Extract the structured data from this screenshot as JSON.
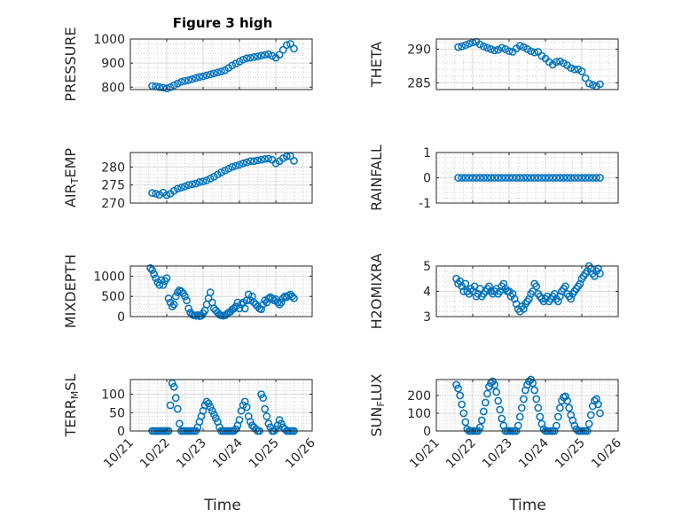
{
  "figure": {
    "title": "Figure 3 high",
    "xlabel": "Time",
    "x_tick_labels": [
      "10/21",
      "10/22",
      "10/23",
      "10/24",
      "10/25",
      "10/26"
    ],
    "marker_color": "#0072BD",
    "grid_color": "#c8c8c8"
  },
  "chart_data": [
    {
      "type": "scatter",
      "name": "pressure",
      "title": "Figure 3 high",
      "xlabel": "",
      "x_unit": "day (Oct)",
      "ylabel": "PRESSURE",
      "ylabel_parts": [
        {
          "t": "PRESSURE",
          "sub": false
        }
      ],
      "xlim": [
        21,
        26
      ],
      "ylim": [
        790,
        1000
      ],
      "yticks": [
        800,
        900,
        1000
      ],
      "ytick_labels": [
        "800",
        "900",
        "1000"
      ],
      "grid": true,
      "minor_grid": true,
      "x": [
        21.6,
        21.7,
        21.8,
        21.9,
        22.0,
        22.1,
        22.2,
        22.3,
        22.4,
        22.5,
        22.6,
        22.7,
        22.8,
        22.9,
        23.0,
        23.1,
        23.2,
        23.3,
        23.4,
        23.5,
        23.6,
        23.7,
        23.8,
        23.9,
        24.0,
        24.1,
        24.2,
        24.3,
        24.4,
        24.5,
        24.6,
        24.7,
        24.8,
        24.9,
        25.0,
        25.1,
        25.2,
        25.3,
        25.4,
        25.5
      ],
      "y": [
        805,
        803,
        800,
        798,
        795,
        800,
        808,
        815,
        822,
        826,
        829,
        833,
        838,
        842,
        845,
        849,
        853,
        857,
        861,
        865,
        870,
        880,
        890,
        898,
        906,
        914,
        920,
        922,
        925,
        928,
        931,
        934,
        937,
        930,
        922,
        935,
        955,
        975,
        980,
        960
      ]
    },
    {
      "type": "scatter",
      "name": "theta",
      "xlabel": "",
      "ylabel": "THETA",
      "ylabel_parts": [
        {
          "t": "THETA",
          "sub": false
        }
      ],
      "xlim": [
        21,
        26
      ],
      "ylim": [
        284,
        291.5
      ],
      "yticks": [
        285,
        290
      ],
      "ytick_labels": [
        "285",
        "290"
      ],
      "grid": true,
      "minor_grid": true,
      "x": [
        21.6,
        21.7,
        21.8,
        21.9,
        22.0,
        22.1,
        22.2,
        22.3,
        22.4,
        22.5,
        22.6,
        22.7,
        22.8,
        22.9,
        23.0,
        23.1,
        23.2,
        23.3,
        23.4,
        23.5,
        23.6,
        23.7,
        23.8,
        23.9,
        24.0,
        24.1,
        24.2,
        24.3,
        24.4,
        24.5,
        24.6,
        24.7,
        24.8,
        24.9,
        25.0,
        25.1,
        25.2,
        25.3,
        25.4,
        25.5
      ],
      "y": [
        290.3,
        290.4,
        290.6,
        290.8,
        291.0,
        291.1,
        290.7,
        290.4,
        290.2,
        290.0,
        289.8,
        289.9,
        290.2,
        290.0,
        289.7,
        289.6,
        290.1,
        290.5,
        290.3,
        290.0,
        289.7,
        289.5,
        289.6,
        289.0,
        288.6,
        288.1,
        287.7,
        288.1,
        288.2,
        287.9,
        287.6,
        287.2,
        287.0,
        287.0,
        286.7,
        285.7,
        284.9,
        284.7,
        284.5,
        284.8
      ]
    },
    {
      "type": "scatter",
      "name": "air_temp",
      "xlabel": "",
      "ylabel": "AIR_TEMP",
      "ylabel_parts": [
        {
          "t": "AIR",
          "sub": false
        },
        {
          "t": "T",
          "sub": true
        },
        {
          "t": "EMP",
          "sub": false
        }
      ],
      "xlim": [
        21,
        26
      ],
      "ylim": [
        270,
        284
      ],
      "yticks": [
        270,
        275,
        280
      ],
      "ytick_labels": [
        "270",
        "275",
        "280"
      ],
      "grid": true,
      "minor_grid": true,
      "x": [
        21.6,
        21.7,
        21.8,
        21.9,
        22.0,
        22.1,
        22.2,
        22.3,
        22.4,
        22.5,
        22.6,
        22.7,
        22.8,
        22.9,
        23.0,
        23.1,
        23.2,
        23.3,
        23.4,
        23.5,
        23.6,
        23.7,
        23.8,
        23.9,
        24.0,
        24.1,
        24.2,
        24.3,
        24.4,
        24.5,
        24.6,
        24.7,
        24.8,
        24.9,
        25.0,
        25.1,
        25.2,
        25.3,
        25.4,
        25.5
      ],
      "y": [
        272.8,
        272.6,
        272.3,
        272.9,
        272.2,
        272.6,
        273.4,
        274.0,
        274.3,
        274.6,
        275.0,
        275.2,
        275.4,
        275.8,
        276.0,
        276.3,
        276.8,
        277.3,
        277.9,
        278.5,
        279.0,
        279.5,
        280.0,
        280.3,
        280.6,
        281.0,
        281.3,
        281.6,
        281.6,
        281.8,
        282.0,
        282.2,
        282.3,
        282.0,
        281.0,
        281.6,
        282.4,
        282.9,
        283.0,
        281.7
      ]
    },
    {
      "type": "scatter",
      "name": "rainfall",
      "xlabel": "",
      "ylabel": "RAINFALL",
      "ylabel_parts": [
        {
          "t": "RAINFALL",
          "sub": false
        }
      ],
      "xlim": [
        21,
        26
      ],
      "ylim": [
        -1,
        1
      ],
      "yticks": [
        -1,
        0,
        1
      ],
      "ytick_labels": [
        "-1",
        "0",
        "1"
      ],
      "grid": true,
      "minor_grid": true,
      "x": [
        21.6,
        21.7,
        21.8,
        21.9,
        22.0,
        22.1,
        22.2,
        22.3,
        22.4,
        22.5,
        22.6,
        22.7,
        22.8,
        22.9,
        23.0,
        23.1,
        23.2,
        23.3,
        23.4,
        23.5,
        23.6,
        23.7,
        23.8,
        23.9,
        24.0,
        24.1,
        24.2,
        24.3,
        24.4,
        24.5,
        24.6,
        24.7,
        24.8,
        24.9,
        25.0,
        25.1,
        25.2,
        25.3,
        25.4,
        25.5
      ],
      "y": [
        0,
        0,
        0,
        0,
        0,
        0,
        0,
        0,
        0,
        0,
        0,
        0,
        0,
        0,
        0,
        0,
        0,
        0,
        0,
        0,
        0,
        0,
        0,
        0,
        0,
        0,
        0,
        0,
        0,
        0,
        0,
        0,
        0,
        0,
        0,
        0,
        0,
        0,
        0,
        0
      ]
    },
    {
      "type": "scatter",
      "name": "mixdepth",
      "xlabel": "",
      "ylabel": "MIXDEPTH",
      "ylabel_parts": [
        {
          "t": "MIXDEPTH",
          "sub": false
        }
      ],
      "xlim": [
        21,
        26
      ],
      "ylim": [
        0,
        1250
      ],
      "yticks": [
        0,
        500,
        1000
      ],
      "ytick_labels": [
        "0",
        "500",
        "1000"
      ],
      "grid": true,
      "minor_grid": true,
      "x": [
        21.55,
        21.6,
        21.65,
        21.7,
        21.75,
        21.8,
        21.85,
        21.9,
        21.95,
        22.0,
        22.05,
        22.1,
        22.15,
        22.2,
        22.25,
        22.3,
        22.35,
        22.4,
        22.45,
        22.5,
        22.55,
        22.6,
        22.65,
        22.7,
        22.75,
        22.8,
        22.85,
        22.9,
        22.95,
        23.0,
        23.05,
        23.1,
        23.15,
        23.2,
        23.25,
        23.3,
        23.35,
        23.4,
        23.45,
        23.5,
        23.55,
        23.6,
        23.65,
        23.7,
        23.75,
        23.8,
        23.85,
        23.9,
        23.95,
        24.0,
        24.05,
        24.1,
        24.15,
        24.2,
        24.25,
        24.3,
        24.35,
        24.4,
        24.45,
        24.5,
        24.55,
        24.6,
        24.65,
        24.7,
        24.75,
        24.8,
        24.85,
        24.9,
        24.95,
        25.0,
        25.05,
        25.1,
        25.15,
        25.2,
        25.25,
        25.3,
        25.35,
        25.4,
        25.45,
        25.5
      ],
      "y": [
        1200,
        1150,
        1050,
        950,
        850,
        780,
        900,
        780,
        880,
        950,
        450,
        350,
        250,
        300,
        500,
        600,
        650,
        620,
        580,
        500,
        400,
        200,
        100,
        50,
        30,
        20,
        40,
        10,
        20,
        80,
        150,
        300,
        450,
        600,
        350,
        200,
        150,
        100,
        50,
        30,
        20,
        30,
        60,
        100,
        120,
        180,
        200,
        250,
        350,
        200,
        300,
        350,
        200,
        400,
        550,
        400,
        500,
        350,
        300,
        250,
        200,
        180,
        300,
        400,
        350,
        450,
        480,
        450,
        400,
        430,
        350,
        300,
        350,
        450,
        500,
        480,
        520,
        550,
        500,
        450
      ]
    },
    {
      "type": "scatter",
      "name": "h2omixra",
      "xlabel": "",
      "ylabel": "H2OMIXRA",
      "ylabel_parts": [
        {
          "t": "H2OMIXRA",
          "sub": false
        }
      ],
      "xlim": [
        21,
        26
      ],
      "ylim": [
        3,
        5
      ],
      "yticks": [
        3,
        4,
        5
      ],
      "ytick_labels": [
        "3",
        "4",
        "5"
      ],
      "grid": true,
      "minor_grid": true,
      "x": [
        21.55,
        21.6,
        21.65,
        21.7,
        21.75,
        21.8,
        21.85,
        21.9,
        21.95,
        22.0,
        22.05,
        22.1,
        22.15,
        22.2,
        22.25,
        22.3,
        22.35,
        22.4,
        22.45,
        22.5,
        22.55,
        22.6,
        22.65,
        22.7,
        22.75,
        22.8,
        22.85,
        22.9,
        22.95,
        23.0,
        23.05,
        23.1,
        23.15,
        23.2,
        23.25,
        23.3,
        23.35,
        23.4,
        23.45,
        23.5,
        23.55,
        23.6,
        23.65,
        23.7,
        23.75,
        23.8,
        23.85,
        23.9,
        23.95,
        24.0,
        24.05,
        24.1,
        24.15,
        24.2,
        24.25,
        24.3,
        24.35,
        24.4,
        24.45,
        24.5,
        24.55,
        24.6,
        24.65,
        24.7,
        24.75,
        24.8,
        24.85,
        24.9,
        24.95,
        25.0,
        25.05,
        25.1,
        25.15,
        25.2,
        25.25,
        25.3,
        25.35,
        25.4,
        25.45,
        25.5
      ],
      "y": [
        4.5,
        4.3,
        4.4,
        4.2,
        4.0,
        4.3,
        4.0,
        3.9,
        4.1,
        4.0,
        4.2,
        3.8,
        3.9,
        4.1,
        3.8,
        3.9,
        4.0,
        4.1,
        4.2,
        4.0,
        3.9,
        4.0,
        4.1,
        3.9,
        4.0,
        4.2,
        4.3,
        4.1,
        4.0,
        4.0,
        3.8,
        3.9,
        3.7,
        3.5,
        3.3,
        3.2,
        3.4,
        3.3,
        3.5,
        3.6,
        3.7,
        3.9,
        4.0,
        4.3,
        4.2,
        3.9,
        3.8,
        3.7,
        3.6,
        3.7,
        3.8,
        3.6,
        3.7,
        3.8,
        3.9,
        3.7,
        3.6,
        3.8,
        4.0,
        4.1,
        4.2,
        3.9,
        3.8,
        3.7,
        3.9,
        4.0,
        4.1,
        4.2,
        4.3,
        4.5,
        4.6,
        4.7,
        4.8,
        5.0,
        4.9,
        4.7,
        4.6,
        4.8,
        4.9,
        4.7
      ]
    },
    {
      "type": "scatter",
      "name": "terr_msl",
      "xlabel": "Time",
      "ylabel": "TERR_MSL",
      "ylabel_parts": [
        {
          "t": "TERR",
          "sub": false
        },
        {
          "t": "M",
          "sub": true
        },
        {
          "t": "SL",
          "sub": false
        }
      ],
      "xlim": [
        21,
        26
      ],
      "ylim": [
        0,
        140
      ],
      "yticks": [
        0,
        50,
        100
      ],
      "ytick_labels": [
        "0",
        "50",
        "100"
      ],
      "x_tick_labels": [
        "10/21",
        "10/22",
        "10/23",
        "10/24",
        "10/25",
        "10/26"
      ],
      "grid": true,
      "minor_grid": true,
      "x": [
        21.6,
        21.65,
        21.7,
        21.75,
        21.8,
        21.85,
        21.9,
        21.95,
        22.0,
        22.05,
        22.1,
        22.15,
        22.2,
        22.25,
        22.3,
        22.35,
        22.4,
        22.45,
        22.5,
        22.55,
        22.6,
        22.65,
        22.7,
        22.75,
        22.8,
        22.85,
        22.9,
        22.95,
        23.0,
        23.05,
        23.1,
        23.15,
        23.2,
        23.25,
        23.3,
        23.35,
        23.4,
        23.45,
        23.5,
        23.55,
        23.6,
        23.65,
        23.7,
        23.75,
        23.8,
        23.85,
        23.9,
        23.95,
        24.0,
        24.05,
        24.1,
        24.15,
        24.2,
        24.25,
        24.3,
        24.35,
        24.4,
        24.45,
        24.5,
        24.55,
        24.6,
        24.65,
        24.7,
        24.75,
        24.8,
        24.85,
        24.9,
        24.95,
        25.0,
        25.05,
        25.1,
        25.15,
        25.2,
        25.25,
        25.3,
        25.35,
        25.4,
        25.45,
        25.5
      ],
      "y": [
        0,
        0,
        0,
        0,
        0,
        0,
        0,
        0,
        0,
        0,
        70,
        130,
        120,
        90,
        60,
        20,
        0,
        0,
        0,
        0,
        0,
        0,
        0,
        0,
        0,
        10,
        25,
        40,
        55,
        70,
        80,
        75,
        65,
        55,
        45,
        35,
        25,
        10,
        0,
        0,
        0,
        0,
        0,
        0,
        0,
        0,
        5,
        15,
        30,
        55,
        70,
        80,
        65,
        40,
        25,
        15,
        10,
        5,
        0,
        0,
        100,
        90,
        60,
        40,
        20,
        10,
        0,
        0,
        5,
        15,
        30,
        20,
        10,
        5,
        0,
        0,
        0,
        0,
        0
      ]
    },
    {
      "type": "scatter",
      "name": "sun_flux",
      "xlabel": "Time",
      "ylabel": "SUN_FLUX",
      "ylabel_parts": [
        {
          "t": "SUN",
          "sub": false
        },
        {
          "t": "F",
          "sub": true
        },
        {
          "t": "LUX",
          "sub": false
        }
      ],
      "xlim": [
        21,
        26
      ],
      "ylim": [
        0,
        290
      ],
      "yticks": [
        0,
        100,
        200
      ],
      "ytick_labels": [
        "0",
        "100",
        "200"
      ],
      "x_tick_labels": [
        "10/21",
        "10/22",
        "10/23",
        "10/24",
        "10/25",
        "10/26"
      ],
      "grid": true,
      "minor_grid": true,
      "x": [
        21.55,
        21.6,
        21.65,
        21.7,
        21.75,
        21.8,
        21.85,
        21.9,
        21.95,
        22.0,
        22.05,
        22.1,
        22.15,
        22.2,
        22.25,
        22.3,
        22.35,
        22.4,
        22.45,
        22.5,
        22.55,
        22.6,
        22.65,
        22.7,
        22.75,
        22.8,
        22.85,
        22.9,
        22.95,
        23.0,
        23.05,
        23.1,
        23.15,
        23.2,
        23.25,
        23.3,
        23.35,
        23.4,
        23.45,
        23.5,
        23.55,
        23.6,
        23.65,
        23.7,
        23.75,
        23.8,
        23.85,
        23.9,
        23.95,
        24.0,
        24.05,
        24.1,
        24.15,
        24.2,
        24.25,
        24.3,
        24.35,
        24.4,
        24.45,
        24.5,
        24.55,
        24.6,
        24.65,
        24.7,
        24.75,
        24.8,
        24.85,
        24.9,
        24.95,
        25.0,
        25.05,
        25.1,
        25.15,
        25.2,
        25.25,
        25.3,
        25.35,
        25.4,
        25.45,
        25.5
      ],
      "y": [
        260,
        240,
        200,
        150,
        100,
        50,
        10,
        0,
        0,
        0,
        0,
        0,
        0,
        20,
        60,
        110,
        160,
        210,
        250,
        270,
        280,
        260,
        220,
        170,
        120,
        70,
        30,
        0,
        0,
        0,
        0,
        0,
        0,
        0,
        30,
        80,
        130,
        180,
        230,
        260,
        280,
        290,
        270,
        230,
        180,
        130,
        80,
        40,
        10,
        0,
        0,
        0,
        0,
        0,
        0,
        30,
        80,
        130,
        170,
        190,
        195,
        170,
        130,
        90,
        60,
        30,
        10,
        0,
        0,
        0,
        0,
        0,
        0,
        40,
        90,
        140,
        170,
        180,
        150,
        100
      ]
    }
  ]
}
